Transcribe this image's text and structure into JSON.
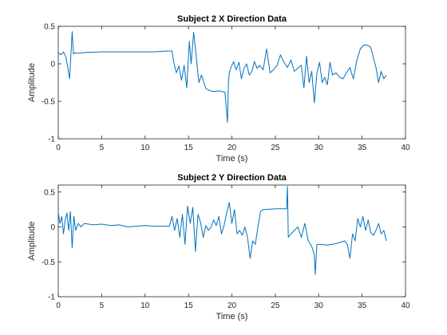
{
  "figure": {
    "background": "#ffffff"
  },
  "chart_data": [
    {
      "type": "line",
      "title": "Subject 2 X Direction Data",
      "xlabel": "Time (s)",
      "ylabel": "Amplitude",
      "xlim": [
        0,
        40
      ],
      "ylim": [
        -1,
        0.5
      ],
      "xticks": [
        0,
        5,
        10,
        15,
        20,
        25,
        30,
        35,
        40
      ],
      "xtick_labels": [
        "0",
        "5",
        "10",
        "15",
        "20",
        "25",
        "30",
        "35",
        "40"
      ],
      "yticks": [
        -1,
        -0.5,
        0,
        0.5
      ],
      "ytick_labels": [
        "-1",
        "-0.5",
        "0",
        "0.5"
      ],
      "grid": false,
      "color": "#0072bd",
      "x": [
        0,
        0.3,
        0.6,
        0.9,
        1.1,
        1.3,
        1.45,
        1.6,
        1.75,
        1.9,
        2.2,
        3,
        5,
        7,
        9,
        11,
        12.5,
        13.1,
        13.3,
        13.6,
        13.9,
        14.2,
        14.5,
        14.8,
        15.1,
        15.3,
        15.6,
        15.9,
        16.2,
        16.5,
        17,
        17.5,
        18,
        18.5,
        19.2,
        19.5,
        19.6,
        19.7,
        19.9,
        20.2,
        20.5,
        20.8,
        21.1,
        21.4,
        21.7,
        22,
        22.3,
        22.6,
        22.9,
        23.2,
        23.6,
        24.0,
        24.4,
        24.8,
        25.2,
        25.6,
        26,
        26.4,
        26.8,
        27.2,
        27.6,
        28,
        28.3,
        28.6,
        28.9,
        29.2,
        29.5,
        29.8,
        30.1,
        30.4,
        30.7,
        31,
        31.3,
        31.6,
        32,
        32.4,
        32.8,
        33.2,
        33.6,
        34,
        34.4,
        34.8,
        35.2,
        35.6,
        36,
        36.3,
        36.6,
        36.9,
        37.2,
        37.5,
        37.8
      ],
      "y": [
        0.15,
        0.12,
        0.16,
        0.08,
        -0.05,
        -0.2,
        0.1,
        0.43,
        0.13,
        0.15,
        0.14,
        0.15,
        0.16,
        0.16,
        0.16,
        0.16,
        0.17,
        0.17,
        0.02,
        -0.12,
        -0.03,
        -0.22,
        -0.02,
        -0.32,
        0.3,
        0.0,
        0.42,
        0.08,
        -0.25,
        -0.15,
        -0.33,
        -0.36,
        -0.37,
        -0.36,
        -0.38,
        -0.78,
        -0.25,
        -0.12,
        -0.05,
        0.03,
        -0.08,
        0.02,
        -0.2,
        -0.06,
        0.0,
        -0.15,
        -0.1,
        0.03,
        -0.06,
        -0.02,
        -0.08,
        0.2,
        -0.12,
        -0.08,
        -0.02,
        0.12,
        0.02,
        -0.05,
        0.05,
        -0.1,
        -0.06,
        -0.02,
        -0.32,
        0.1,
        -0.25,
        -0.1,
        -0.52,
        -0.12,
        0.02,
        -0.25,
        -0.18,
        -0.28,
        0.02,
        -0.15,
        -0.12,
        -0.18,
        -0.2,
        -0.12,
        -0.05,
        -0.2,
        0.05,
        0.2,
        0.25,
        0.25,
        0.22,
        0.08,
        -0.05,
        -0.25,
        -0.1,
        -0.2,
        -0.15
      ]
    },
    {
      "type": "line",
      "title": "Subject 2 Y Direction Data",
      "xlabel": "Time (s)",
      "ylabel": "Amplitude",
      "xlim": [
        0,
        40
      ],
      "ylim": [
        -1,
        0.6
      ],
      "xticks": [
        0,
        5,
        10,
        15,
        20,
        25,
        30,
        35,
        40
      ],
      "xtick_labels": [
        "0",
        "5",
        "10",
        "15",
        "20",
        "25",
        "30",
        "35",
        "40"
      ],
      "yticks": [
        -1,
        -0.5,
        0,
        0.5
      ],
      "ytick_labels": [
        "-1",
        "-0.5",
        "0",
        "0.5"
      ],
      "grid": false,
      "color": "#0072bd",
      "x": [
        0,
        0.2,
        0.4,
        0.6,
        0.8,
        1.0,
        1.2,
        1.4,
        1.6,
        1.8,
        2.0,
        2.3,
        2.6,
        3,
        4,
        5,
        6,
        7,
        8,
        9,
        10,
        11,
        12,
        12.8,
        13.1,
        13.4,
        13.7,
        14.0,
        14.3,
        14.6,
        14.9,
        15.2,
        15.5,
        15.8,
        16.1,
        16.4,
        16.7,
        17.0,
        17.3,
        17.6,
        17.9,
        18.2,
        18.5,
        18.8,
        19.1,
        19.4,
        19.7,
        20.0,
        20.3,
        20.6,
        20.9,
        21.2,
        21.5,
        21.8,
        22.1,
        22.4,
        22.7,
        23.0,
        23.3,
        23.6,
        24.0,
        25,
        26,
        26.3,
        26.4,
        26.5,
        26.8,
        27.2,
        27.6,
        28,
        28.4,
        28.8,
        29.2,
        29.5,
        29.6,
        29.8,
        30.2,
        31,
        32,
        33,
        33.3,
        33.6,
        33.9,
        34.2,
        34.5,
        34.8,
        35.1,
        35.4,
        35.7,
        36.0,
        36.3,
        36.6,
        36.9,
        37.2,
        37.5,
        37.8
      ],
      "y": [
        0.2,
        0.05,
        0.15,
        -0.1,
        0.1,
        0.2,
        -0.05,
        0.22,
        -0.3,
        0.15,
        -0.05,
        0.05,
        0.0,
        0.05,
        0.03,
        0.04,
        0.02,
        0.03,
        0.0,
        0.01,
        0.02,
        0.01,
        0.01,
        0.01,
        0.15,
        -0.05,
        0.12,
        -0.15,
        0.18,
        -0.25,
        0.3,
        0.05,
        0.28,
        -0.35,
        0.18,
        0.06,
        -0.15,
        0.02,
        -0.05,
        0.0,
        0.1,
        0.02,
        0.15,
        -0.1,
        0.02,
        0.2,
        0.35,
        0.05,
        0.25,
        -0.1,
        -0.05,
        -0.12,
        0.0,
        -0.15,
        -0.45,
        -0.2,
        -0.25,
        0.0,
        0.22,
        0.25,
        0.25,
        0.26,
        0.26,
        0.26,
        0.58,
        -0.15,
        -0.1,
        -0.05,
        0.0,
        -0.15,
        0.05,
        -0.2,
        -0.28,
        -0.4,
        -0.68,
        -0.25,
        -0.25,
        -0.26,
        -0.24,
        -0.2,
        -0.25,
        -0.45,
        -0.1,
        -0.2,
        0.12,
        0.0,
        0.15,
        -0.05,
        0.1,
        -0.08,
        -0.12,
        -0.05,
        0.05,
        -0.1,
        -0.05,
        -0.2
      ]
    }
  ]
}
